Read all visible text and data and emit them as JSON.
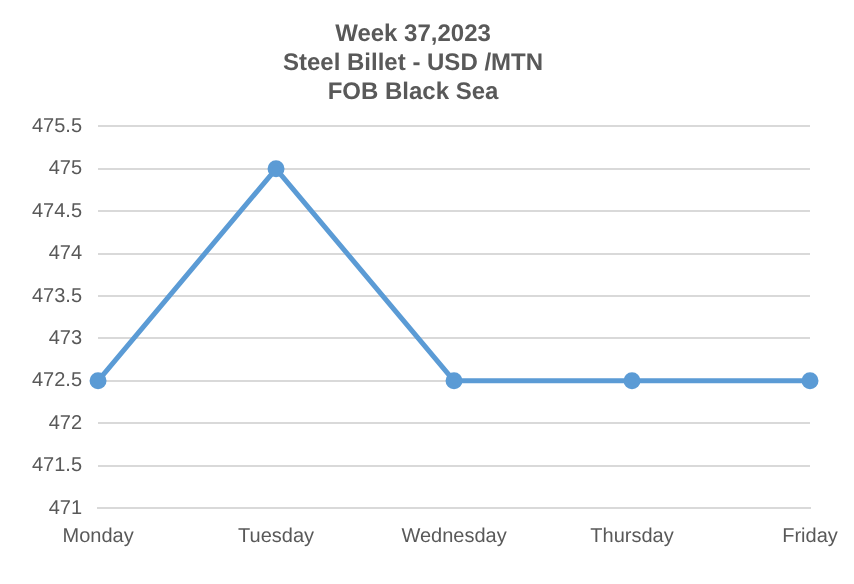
{
  "chart_data": {
    "type": "line",
    "title": "Week 37,2023\nSteel Billet - USD /MTN\nFOB Black Sea",
    "categories": [
      "Monday",
      "Tuesday",
      "Wednesday",
      "Thursday",
      "Friday"
    ],
    "series": [
      {
        "color": "#5b9bd5",
        "values": [
          472.5,
          475,
          472.5,
          472.5,
          472.5
        ]
      }
    ],
    "ylim": [
      471,
      475.5
    ],
    "yticks": [
      471,
      471.5,
      472,
      472.5,
      473,
      473.5,
      474,
      474.5,
      475,
      475.5
    ],
    "grid": "y",
    "marker": "circle",
    "line_style": "solid",
    "legend": false
  }
}
